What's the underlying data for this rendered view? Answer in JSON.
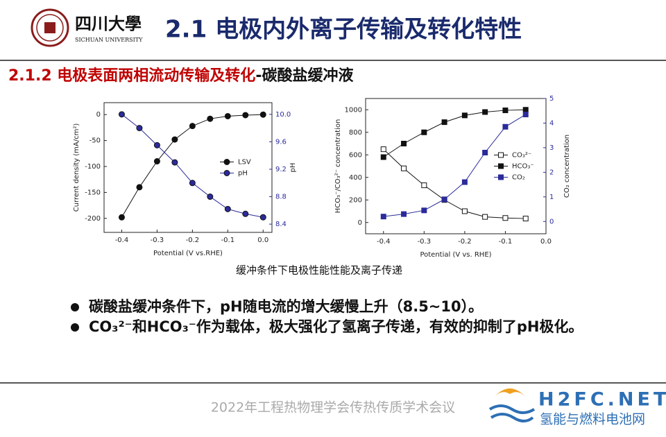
{
  "header": {
    "logo_name": "四川大學",
    "logo_subtitle": "SICHUAN UNIVERSITY",
    "title": "2.1 电极内外离子传输及转化特性"
  },
  "section": {
    "title_red": "2.1.2 电极表面两相流动传输及转化",
    "title_black": "-碳酸盐缓冲液"
  },
  "chart_data": [
    {
      "type": "line",
      "xlabel": "Potential (V vs.RHE)",
      "ylabel": "Current density (mA/cm²)",
      "y2label": "pH",
      "x": [
        -0.4,
        -0.35,
        -0.3,
        -0.25,
        -0.2,
        -0.15,
        -0.1,
        -0.05,
        0
      ],
      "xlim": [
        -0.45,
        0.025
      ],
      "xticks": [
        -0.4,
        -0.3,
        -0.2,
        -0.1,
        {
          "value": 0,
          "label": "0.0"
        }
      ],
      "ylim": [
        -227,
        23
      ],
      "yticks": [
        -200,
        -150,
        -100,
        -50,
        0
      ],
      "y2lim": [
        8.28,
        10.17
      ],
      "y2ticks": [
        8.4,
        8.8,
        9.2,
        9.6,
        {
          "value": 10,
          "label": "10.0"
        }
      ],
      "legend": "center right",
      "series": [
        {
          "name": "LSV",
          "color": "#111111",
          "marker": "circle",
          "filled": true,
          "values": [
            -198,
            -140,
            -90,
            -48,
            -22,
            -8,
            -3,
            -1,
            0
          ]
        },
        {
          "name": "pH",
          "color": "#2b2b9a",
          "marker": "circle",
          "filled": true,
          "axis": "y2",
          "values": [
            10.0,
            9.8,
            9.55,
            9.3,
            9.0,
            8.8,
            8.62,
            8.55,
            8.5
          ]
        }
      ]
    },
    {
      "type": "line",
      "xlabel": "Potential (V vs. RHE)",
      "ylabel": "HCO₃⁻/CO₃²⁻ concentration",
      "y2label": "CO₂ concentration",
      "x": [
        -0.4,
        -0.35,
        -0.3,
        -0.25,
        -0.2,
        -0.15,
        -0.1,
        -0.05
      ],
      "xlim": [
        -0.444,
        0
      ],
      "xticks": [
        -0.4,
        -0.3,
        -0.2,
        -0.1,
        {
          "value": 0,
          "label": "0.0"
        }
      ],
      "ylim": [
        -100,
        1100
      ],
      "yticks": [
        0,
        200,
        400,
        600,
        800,
        1000
      ],
      "y2lim": [
        -0.5,
        5
      ],
      "y2ticks": [
        0,
        1,
        2,
        3,
        4,
        5
      ],
      "legend": "center right",
      "series": [
        {
          "name": "CO₃²⁻",
          "color": "#111111",
          "marker": "square",
          "filled": false,
          "values": [
            650,
            480,
            330,
            200,
            100,
            50,
            40,
            35
          ]
        },
        {
          "name": "HCO₃⁻",
          "color": "#111111",
          "marker": "square",
          "filled": true,
          "values": [
            580,
            700,
            800,
            890,
            950,
            980,
            995,
            1000
          ]
        },
        {
          "name": "CO₂",
          "color": "#2b2b9a",
          "marker": "square",
          "filled": true,
          "axis": "y2",
          "values": [
            0.2,
            0.3,
            0.45,
            0.9,
            1.6,
            2.8,
            3.85,
            4.35
          ]
        }
      ]
    }
  ],
  "caption": "缓冲条件下电极性能性能及离子传递",
  "bullets": [
    "碳酸盐缓冲条件下，pH随电流的增大缓慢上升（8.5~10）。",
    "CO₃²⁻和HCO₃⁻作为载体，极大强化了氢离子传递，有效的抑制了pH极化。"
  ],
  "footer": "2022年工程热物理学会传热传质学术会议",
  "watermark": {
    "name": "H2FC.NET",
    "subtitle": "氢能与燃料电池网"
  }
}
